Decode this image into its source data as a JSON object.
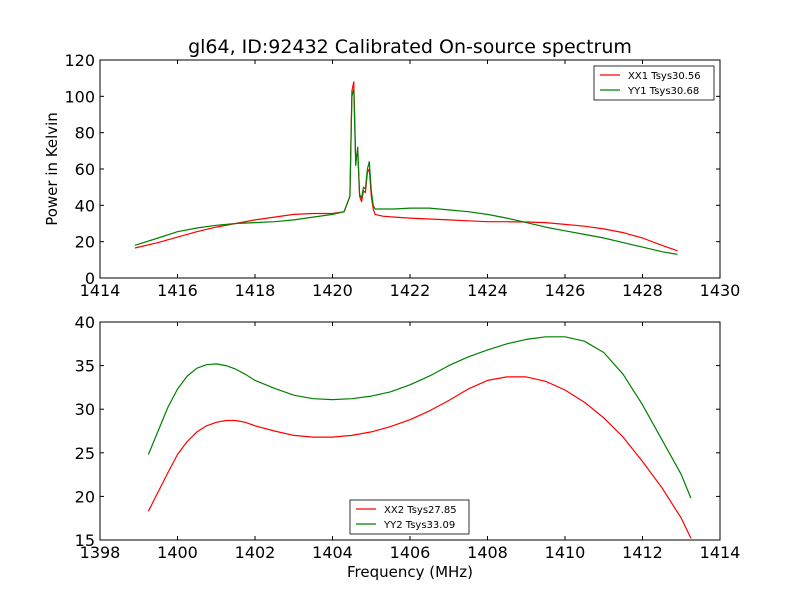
{
  "chart_data": [
    {
      "type": "line",
      "title": "gl64, ID:92432 Calibrated On-source spectrum",
      "xlabel": "",
      "ylabel": "Power in Kelvin",
      "xlim": [
        1414,
        1430
      ],
      "ylim": [
        0,
        120
      ],
      "xticks": [
        1414,
        1416,
        1418,
        1420,
        1422,
        1424,
        1426,
        1428,
        1430
      ],
      "yticks": [
        0,
        20,
        40,
        60,
        80,
        100,
        120
      ],
      "legend_location": "top-right",
      "series": [
        {
          "name": "XX1 Tsys30.56",
          "color": "#ff0000",
          "x": [
            1414.9,
            1415.5,
            1416.0,
            1416.5,
            1417.0,
            1417.5,
            1418.0,
            1418.5,
            1419.0,
            1419.5,
            1420.0,
            1420.3,
            1420.45,
            1420.5,
            1420.55,
            1420.6,
            1420.65,
            1420.7,
            1420.75,
            1420.8,
            1420.85,
            1420.9,
            1420.95,
            1421.0,
            1421.05,
            1421.1,
            1421.3,
            1421.6,
            1422.0,
            1422.5,
            1423.0,
            1423.5,
            1424.0,
            1424.5,
            1425.0,
            1425.5,
            1426.0,
            1426.5,
            1427.0,
            1427.5,
            1428.0,
            1428.5,
            1428.9
          ],
          "y": [
            16.5,
            19.5,
            22.5,
            25.5,
            28.0,
            30.0,
            32.0,
            33.5,
            35.0,
            35.5,
            35.5,
            36.5,
            45.0,
            103.0,
            108.0,
            65.0,
            70.0,
            45.0,
            42.0,
            48.0,
            47.0,
            58.0,
            60.0,
            45.0,
            38.0,
            35.0,
            34.0,
            33.5,
            33.0,
            32.5,
            32.0,
            31.5,
            31.0,
            31.0,
            30.8,
            30.5,
            29.5,
            28.5,
            27.0,
            25.0,
            22.0,
            18.0,
            15.0
          ]
        },
        {
          "name": "YY1 Tsys30.68",
          "color": "#008000",
          "x": [
            1414.9,
            1415.5,
            1416.0,
            1416.5,
            1417.0,
            1417.5,
            1418.0,
            1418.5,
            1419.0,
            1419.5,
            1420.0,
            1420.3,
            1420.45,
            1420.5,
            1420.55,
            1420.6,
            1420.65,
            1420.7,
            1420.75,
            1420.8,
            1420.85,
            1420.9,
            1420.95,
            1421.0,
            1421.05,
            1421.1,
            1421.3,
            1421.6,
            1422.0,
            1422.5,
            1423.0,
            1423.5,
            1424.0,
            1424.5,
            1425.0,
            1425.5,
            1426.0,
            1426.5,
            1427.0,
            1427.5,
            1428.0,
            1428.5,
            1428.9
          ],
          "y": [
            18.0,
            22.0,
            25.5,
            27.5,
            29.0,
            30.0,
            30.5,
            31.0,
            32.0,
            33.5,
            35.0,
            36.5,
            45.0,
            100.0,
            104.0,
            62.0,
            72.0,
            46.0,
            44.0,
            50.0,
            49.0,
            60.0,
            64.0,
            48.0,
            40.0,
            38.0,
            38.0,
            38.0,
            38.5,
            38.5,
            37.5,
            36.5,
            35.0,
            33.0,
            30.5,
            28.0,
            26.0,
            24.0,
            22.0,
            19.5,
            17.0,
            14.5,
            13.0
          ]
        }
      ]
    },
    {
      "type": "line",
      "title": "",
      "xlabel": "Frequency (MHz)",
      "ylabel": "",
      "xlim": [
        1398,
        1414
      ],
      "ylim": [
        15,
        40
      ],
      "xticks": [
        1398,
        1400,
        1402,
        1404,
        1406,
        1408,
        1410,
        1412,
        1414
      ],
      "yticks": [
        15,
        20,
        25,
        30,
        35,
        40
      ],
      "legend_location": "lower-center",
      "series": [
        {
          "name": "XX2 Tsys27.85",
          "color": "#ff0000",
          "x": [
            1399.25,
            1399.5,
            1399.75,
            1400.0,
            1400.25,
            1400.5,
            1400.75,
            1401.0,
            1401.25,
            1401.5,
            1401.75,
            1402.0,
            1402.5,
            1403.0,
            1403.5,
            1404.0,
            1404.5,
            1405.0,
            1405.5,
            1406.0,
            1406.5,
            1407.0,
            1407.5,
            1408.0,
            1408.5,
            1409.0,
            1409.5,
            1410.0,
            1410.5,
            1411.0,
            1411.5,
            1412.0,
            1412.5,
            1413.0,
            1413.25
          ],
          "y": [
            18.3,
            20.5,
            22.7,
            24.8,
            26.3,
            27.4,
            28.1,
            28.5,
            28.7,
            28.7,
            28.5,
            28.1,
            27.5,
            27.0,
            26.8,
            26.8,
            27.0,
            27.4,
            28.0,
            28.8,
            29.8,
            31.0,
            32.3,
            33.3,
            33.7,
            33.7,
            33.2,
            32.2,
            30.8,
            29.0,
            26.8,
            24.0,
            21.0,
            17.5,
            15.2
          ]
        },
        {
          "name": "YY2 Tsys33.09",
          "color": "#008000",
          "x": [
            1399.25,
            1399.5,
            1399.75,
            1400.0,
            1400.25,
            1400.5,
            1400.75,
            1401.0,
            1401.25,
            1401.5,
            1401.75,
            1402.0,
            1402.5,
            1403.0,
            1403.5,
            1404.0,
            1404.5,
            1405.0,
            1405.5,
            1406.0,
            1406.5,
            1407.0,
            1407.5,
            1408.0,
            1408.5,
            1409.0,
            1409.5,
            1410.0,
            1410.5,
            1411.0,
            1411.5,
            1412.0,
            1412.5,
            1413.0,
            1413.25
          ],
          "y": [
            24.8,
            27.5,
            30.2,
            32.3,
            33.8,
            34.7,
            35.1,
            35.2,
            35.0,
            34.6,
            34.0,
            33.3,
            32.4,
            31.6,
            31.2,
            31.1,
            31.2,
            31.5,
            32.0,
            32.8,
            33.8,
            35.0,
            36.0,
            36.8,
            37.5,
            38.0,
            38.3,
            38.3,
            37.8,
            36.5,
            34.0,
            30.5,
            26.5,
            22.5,
            19.8
          ]
        }
      ]
    }
  ]
}
